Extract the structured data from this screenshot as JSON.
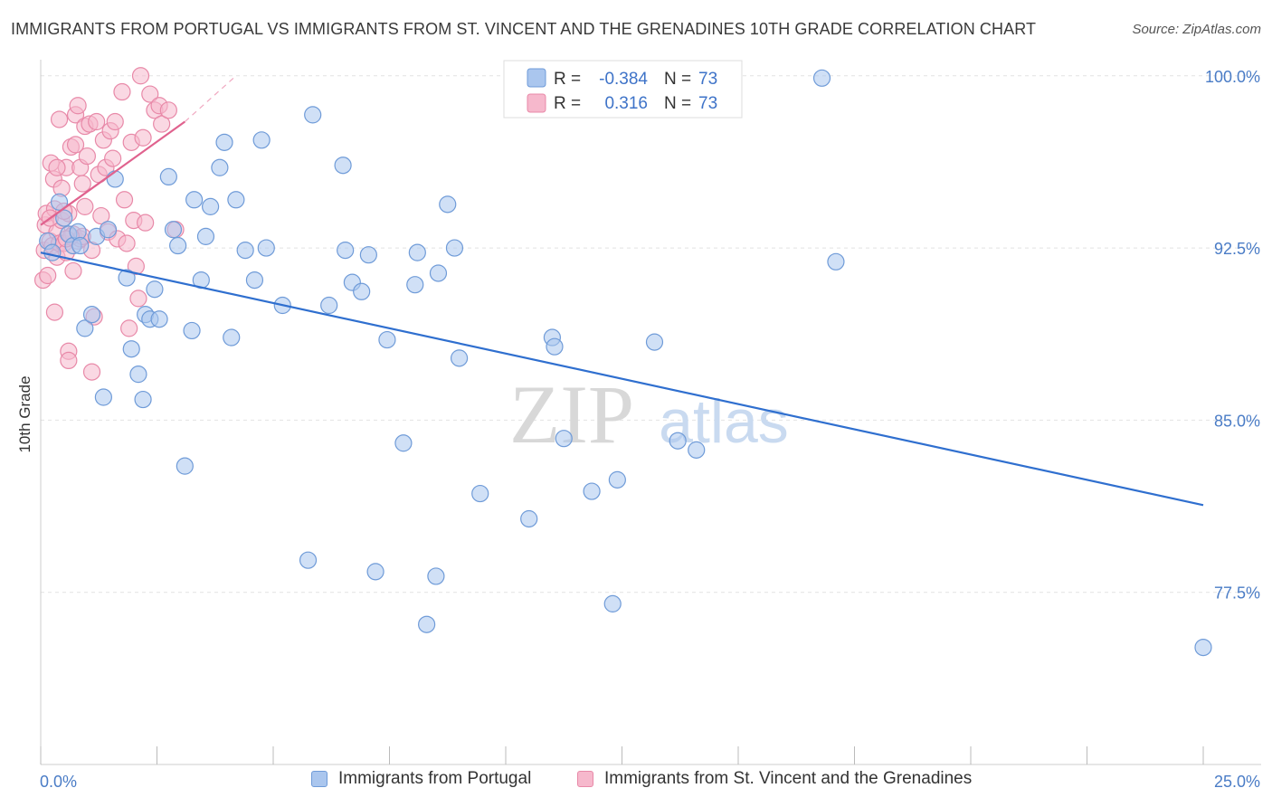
{
  "title": "IMMIGRANTS FROM PORTUGAL VS IMMIGRANTS FROM ST. VINCENT AND THE GRENADINES 10TH GRADE CORRELATION CHART",
  "source": "Source: ZipAtlas.com",
  "watermark": {
    "zip": "ZIP",
    "atlas": "atlas"
  },
  "colors": {
    "blue_fill": "#aac6ee",
    "blue_stroke": "#6f9bd8",
    "blue_line": "#2f6fcf",
    "pink_fill": "#f6b8cc",
    "pink_stroke": "#e889a8",
    "pink_line": "#e0628e",
    "grid": "#e2e2e2",
    "label": "#4a7cc6"
  },
  "legend": {
    "series1": {
      "r_label": "R =",
      "r_value": "-0.384",
      "n_label": "N =",
      "n_value": "73"
    },
    "series2": {
      "r_label": "R =",
      "r_value": " 0.316",
      "n_label": "N =",
      "n_value": "73"
    }
  },
  "bottom_legend": {
    "series1": "Immigrants from Portugal",
    "series2": "Immigrants from St. Vincent and the Grenadines"
  },
  "chart_data": {
    "type": "scatter",
    "title": "IMMIGRANTS FROM PORTUGAL VS IMMIGRANTS FROM ST. VINCENT AND THE GRENADINES 10TH GRADE CORRELATION CHART",
    "xlabel": "",
    "ylabel": "10th Grade",
    "xlim": [
      0,
      25
    ],
    "ylim": [
      70.0,
      100.7
    ],
    "x_tick_labels": [
      "0.0%",
      "25.0%"
    ],
    "y_ticks": [
      77.5,
      85.0,
      92.5,
      100.0
    ],
    "y_tick_labels": [
      "77.5%",
      "85.0%",
      "92.5%",
      "100.0%"
    ],
    "grid": true,
    "series": [
      {
        "name": "Immigrants from Portugal",
        "r": -0.384,
        "n": 73,
        "trend": {
          "x": [
            0,
            25
          ],
          "y": [
            92.3,
            81.3
          ]
        },
        "points": [
          [
            0.15,
            92.8
          ],
          [
            0.25,
            92.3
          ],
          [
            0.4,
            94.5
          ],
          [
            0.5,
            93.8
          ],
          [
            0.6,
            93.1
          ],
          [
            0.7,
            92.6
          ],
          [
            0.8,
            93.2
          ],
          [
            0.85,
            92.6
          ],
          [
            0.95,
            89.0
          ],
          [
            1.1,
            89.6
          ],
          [
            1.2,
            93.0
          ],
          [
            1.35,
            86.0
          ],
          [
            1.45,
            93.3
          ],
          [
            1.6,
            95.5
          ],
          [
            1.85,
            91.2
          ],
          [
            1.95,
            88.1
          ],
          [
            2.1,
            87.0
          ],
          [
            2.2,
            85.9
          ],
          [
            2.25,
            89.6
          ],
          [
            2.35,
            89.4
          ],
          [
            2.45,
            90.7
          ],
          [
            2.55,
            89.4
          ],
          [
            2.75,
            95.6
          ],
          [
            2.85,
            93.3
          ],
          [
            2.95,
            92.6
          ],
          [
            3.1,
            83.0
          ],
          [
            3.25,
            88.9
          ],
          [
            3.3,
            94.6
          ],
          [
            3.45,
            91.1
          ],
          [
            3.55,
            93.0
          ],
          [
            3.65,
            94.3
          ],
          [
            3.85,
            96.0
          ],
          [
            3.95,
            97.1
          ],
          [
            4.1,
            88.6
          ],
          [
            4.2,
            94.6
          ],
          [
            4.4,
            92.4
          ],
          [
            4.6,
            91.1
          ],
          [
            4.75,
            97.2
          ],
          [
            4.85,
            92.5
          ],
          [
            5.2,
            90.0
          ],
          [
            5.75,
            78.9
          ],
          [
            5.85,
            98.3
          ],
          [
            6.2,
            90.0
          ],
          [
            6.5,
            96.1
          ],
          [
            6.55,
            92.4
          ],
          [
            6.7,
            91.0
          ],
          [
            6.9,
            90.6
          ],
          [
            7.05,
            92.2
          ],
          [
            7.2,
            78.4
          ],
          [
            7.45,
            88.5
          ],
          [
            7.8,
            84.0
          ],
          [
            8.05,
            90.9
          ],
          [
            8.1,
            92.3
          ],
          [
            8.3,
            76.1
          ],
          [
            8.5,
            78.2
          ],
          [
            8.55,
            91.4
          ],
          [
            8.75,
            94.4
          ],
          [
            8.9,
            92.5
          ],
          [
            9.0,
            87.7
          ],
          [
            9.45,
            81.8
          ],
          [
            10.5,
            80.7
          ],
          [
            11.0,
            88.6
          ],
          [
            11.05,
            88.2
          ],
          [
            11.25,
            84.2
          ],
          [
            11.85,
            81.9
          ],
          [
            12.3,
            77.0
          ],
          [
            12.4,
            82.4
          ],
          [
            13.2,
            88.4
          ],
          [
            13.7,
            84.1
          ],
          [
            14.1,
            83.7
          ],
          [
            16.8,
            99.9
          ],
          [
            17.1,
            91.9
          ],
          [
            25.0,
            75.1
          ]
        ]
      },
      {
        "name": "Immigrants from St. Vincent and the Grenadines",
        "r": 0.316,
        "n": 73,
        "trend": {
          "x": [
            0,
            3.1
          ],
          "y": [
            93.5,
            98.0
          ]
        },
        "trend_extension": {
          "x": [
            3.1,
            4.2
          ],
          "y": [
            98.0,
            100.0
          ]
        },
        "points": [
          [
            0.05,
            91.1
          ],
          [
            0.08,
            92.4
          ],
          [
            0.1,
            93.5
          ],
          [
            0.12,
            94.0
          ],
          [
            0.15,
            91.3
          ],
          [
            0.2,
            92.8
          ],
          [
            0.22,
            96.2
          ],
          [
            0.25,
            92.6
          ],
          [
            0.28,
            95.5
          ],
          [
            0.3,
            94.2
          ],
          [
            0.3,
            89.7
          ],
          [
            0.35,
            93.2
          ],
          [
            0.35,
            92.1
          ],
          [
            0.4,
            92.7
          ],
          [
            0.4,
            98.1
          ],
          [
            0.45,
            95.1
          ],
          [
            0.45,
            93.7
          ],
          [
            0.5,
            92.7
          ],
          [
            0.55,
            92.3
          ],
          [
            0.55,
            96.0
          ],
          [
            0.6,
            88.0
          ],
          [
            0.6,
            87.6
          ],
          [
            0.6,
            94.0
          ],
          [
            0.65,
            96.9
          ],
          [
            0.7,
            91.5
          ],
          [
            0.7,
            93.1
          ],
          [
            0.75,
            97.0
          ],
          [
            0.75,
            98.3
          ],
          [
            0.8,
            98.7
          ],
          [
            0.8,
            92.8
          ],
          [
            0.85,
            96.0
          ],
          [
            0.85,
            92.9
          ],
          [
            0.9,
            95.3
          ],
          [
            0.9,
            93.0
          ],
          [
            0.95,
            97.8
          ],
          [
            1.0,
            96.5
          ],
          [
            1.05,
            97.9
          ],
          [
            1.1,
            87.1
          ],
          [
            1.15,
            89.5
          ],
          [
            1.2,
            98.0
          ],
          [
            1.25,
            95.7
          ],
          [
            1.3,
            93.9
          ],
          [
            1.35,
            97.2
          ],
          [
            1.4,
            96.0
          ],
          [
            1.45,
            93.2
          ],
          [
            1.5,
            97.6
          ],
          [
            1.55,
            96.4
          ],
          [
            1.6,
            98.0
          ],
          [
            1.65,
            92.9
          ],
          [
            1.75,
            99.3
          ],
          [
            1.8,
            94.6
          ],
          [
            1.85,
            92.7
          ],
          [
            1.9,
            89.0
          ],
          [
            1.95,
            97.1
          ],
          [
            2.0,
            93.7
          ],
          [
            2.05,
            91.7
          ],
          [
            2.1,
            90.3
          ],
          [
            2.15,
            100.0
          ],
          [
            2.2,
            97.3
          ],
          [
            2.25,
            93.6
          ],
          [
            2.35,
            99.2
          ],
          [
            2.45,
            98.5
          ],
          [
            2.55,
            98.7
          ],
          [
            2.6,
            97.9
          ],
          [
            2.75,
            98.5
          ],
          [
            2.9,
            93.3
          ],
          [
            0.2,
            93.8
          ],
          [
            0.35,
            96.0
          ],
          [
            0.5,
            94.1
          ],
          [
            0.65,
            93.0
          ],
          [
            0.95,
            94.3
          ],
          [
            1.1,
            92.4
          ],
          [
            0.55,
            92.9
          ]
        ]
      }
    ]
  }
}
